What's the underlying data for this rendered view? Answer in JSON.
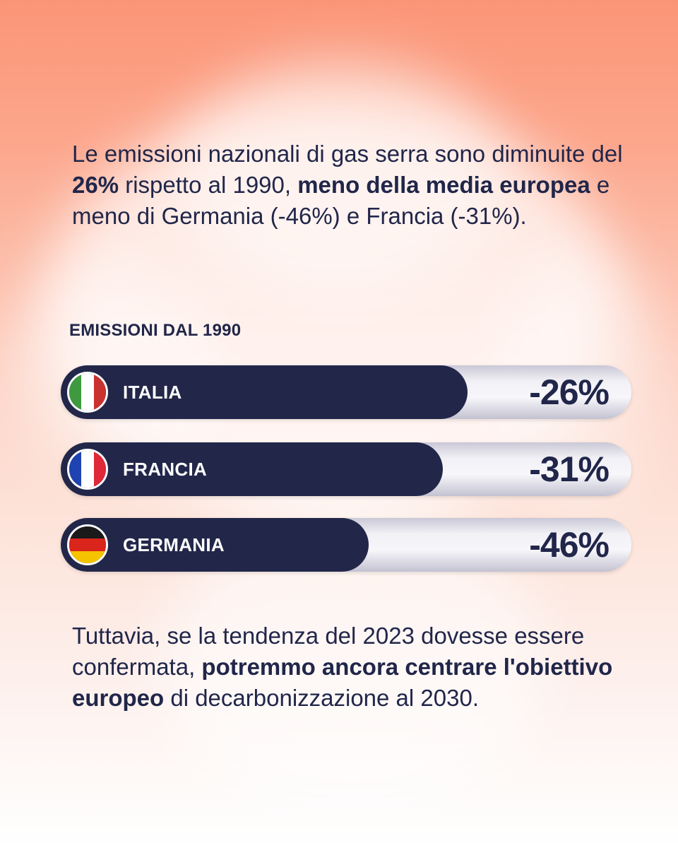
{
  "intro": {
    "p1": "Le emissioni nazionali di gas serra sono diminuite del ",
    "b1": "26%",
    "p2": " rispetto al 1990, ",
    "b2": "meno della media europea",
    "p3": " e meno di Germania (-46%) e Francia (-31%)."
  },
  "outro": {
    "p1": "Tuttavia, se la tendenza del 2023 dovesse essere confermata, ",
    "b1": "potremmo ancora centrare l'obiettivo europeo",
    "p2": " di decarbonizzazione al 2030."
  },
  "chart_data": {
    "type": "bar",
    "title": "EMISSIONI DAL 1990",
    "categories": [
      "ITALIA",
      "FRANCIA",
      "GERMANIA"
    ],
    "values": [
      -26,
      -31,
      -46
    ],
    "labels": [
      "-26%",
      "-31%",
      "-46%"
    ],
    "unit": "%",
    "bar_color": "#22274a",
    "flags": [
      {
        "country": "ITALIA",
        "colors": [
          "#3f9a3f",
          "#ffffff",
          "#c9322f"
        ],
        "orientation": "vertical"
      },
      {
        "country": "FRANCIA",
        "colors": [
          "#1f43b0",
          "#ffffff",
          "#e0283b"
        ],
        "orientation": "vertical"
      },
      {
        "country": "GERMANIA",
        "colors": [
          "#1a1a1a",
          "#d9251c",
          "#f5c300"
        ],
        "orientation": "horizontal"
      }
    ]
  }
}
